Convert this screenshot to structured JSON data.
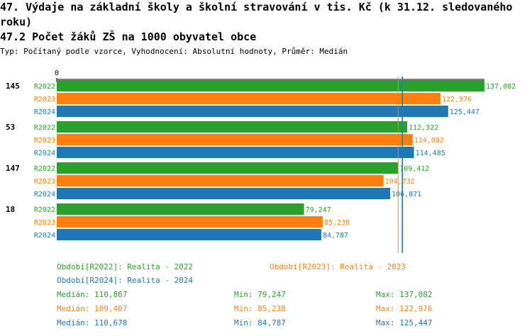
{
  "title": "47. Výdaje na základní školy a školní stravování v tis. Kč (k 31.12. sledovaného roku)",
  "subtitle": "47.2 Počet žáků ZŠ na 1000 obyvatel obce",
  "meta": "Typ: Počítaný podle vzorce, Vyhodnocení: Absolutní hodnoty, Průměr: Medián",
  "colors": {
    "R2022": "#2ca02c",
    "R2023": "#ff7f0e",
    "R2024": "#1f77b4"
  },
  "chart_data": {
    "type": "bar",
    "orientation": "horizontal",
    "x_tick_labels": [
      "0"
    ],
    "xlim": [
      0,
      137082
    ],
    "categories": [
      "145",
      "53",
      "147",
      "18"
    ],
    "series": [
      {
        "name": "R2022",
        "values": [
          137082,
          112322,
          109412,
          79247
        ],
        "labels": [
          "137,082",
          "112,322",
          "109,412",
          "79,247"
        ]
      },
      {
        "name": "R2023",
        "values": [
          122976,
          114082,
          104732,
          85238
        ],
        "labels": [
          "122,976",
          "114,082",
          "104,732",
          "85,238"
        ]
      },
      {
        "name": "R2024",
        "values": [
          125447,
          114485,
          106871,
          84787
        ],
        "labels": [
          "125,447",
          "114,485",
          "106,871",
          "84,787"
        ]
      }
    ],
    "median_lines": [
      {
        "series": "R2022",
        "value": 110867
      },
      {
        "series": "R2023",
        "value": 109407
      },
      {
        "series": "R2024",
        "value": 110678
      }
    ]
  },
  "legend": {
    "r2022": "Období[R2022]: Realita - 2022",
    "r2023": "Období[R2023]: Realita - 2023",
    "r2024": "Období[R2024]: Realita - 2024"
  },
  "stats": [
    {
      "series": "R2022",
      "median": "Medián: 110,867",
      "min": "Min: 79,247",
      "max": "Max: 137,082"
    },
    {
      "series": "R2023",
      "median": "Medián: 109,407",
      "min": "Min: 85,238",
      "max": "Max: 122,976"
    },
    {
      "series": "R2024",
      "median": "Medián: 110,678",
      "min": "Min: 84,787",
      "max": "Max: 125,447"
    }
  ]
}
